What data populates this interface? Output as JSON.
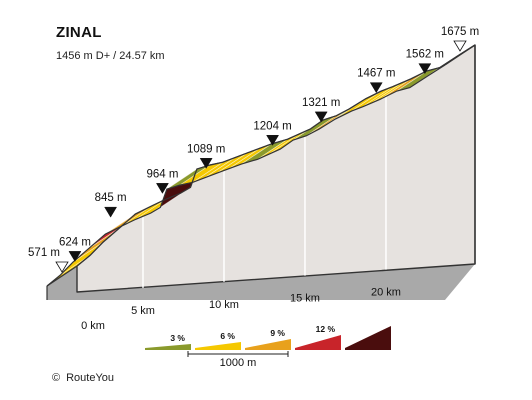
{
  "header": {
    "title": "ZINAL",
    "subtitle": "1456 m D+ / 24.57 km"
  },
  "footer": {
    "copyright_symbol": "©",
    "copyright_text": "RouteYou"
  },
  "colors": {
    "grade_3": "#8a9a2c",
    "grade_6": "#f5c800",
    "grade_9": "#e8a11c",
    "grade_12": "#c8242a",
    "grade_max": "#4a0d0d",
    "side_face": "#e6e2df",
    "base_face": "#a9a9a9",
    "edge": "#333333"
  },
  "chart_data": {
    "type": "area",
    "title": "ZINAL",
    "subtitle": "1456 m D+ / 24.57 km",
    "xlabel": "",
    "ylabel": "",
    "x_unit": "km",
    "y_unit": "m",
    "xlim": [
      0,
      24.57
    ],
    "ylim": [
      571,
      1675
    ],
    "x_ticks": [
      {
        "value": 0,
        "label": "0 km"
      },
      {
        "value": 5,
        "label": "5 km"
      },
      {
        "value": 10,
        "label": "10 km"
      },
      {
        "value": 15,
        "label": "15 km"
      },
      {
        "value": 20,
        "label": "20 km"
      }
    ],
    "profile": [
      {
        "km": 0.0,
        "elev": 571,
        "color": "grade_6"
      },
      {
        "km": 0.8,
        "elev": 624,
        "color": "grade_6"
      },
      {
        "km": 1.6,
        "elev": 690,
        "color": "grade_9"
      },
      {
        "km": 2.6,
        "elev": 760,
        "color": "grade_12"
      },
      {
        "km": 3.6,
        "elev": 830,
        "color": "grade_9"
      },
      {
        "km": 4.6,
        "elev": 870,
        "color": "grade_6"
      },
      {
        "km": 5.5,
        "elev": 905,
        "color": "grade_6"
      },
      {
        "km": 6.4,
        "elev": 935,
        "color": "grade_3"
      },
      {
        "km": 7.0,
        "elev": 964,
        "color": "grade_max"
      },
      {
        "km": 7.4,
        "elev": 1055,
        "color": "grade_3"
      },
      {
        "km": 8.2,
        "elev": 1075,
        "color": "grade_6"
      },
      {
        "km": 9.0,
        "elev": 1089,
        "color": "grade_6"
      },
      {
        "km": 10.5,
        "elev": 1135,
        "color": "grade_6"
      },
      {
        "km": 12.0,
        "elev": 1180,
        "color": "grade_3"
      },
      {
        "km": 13.0,
        "elev": 1204,
        "color": "grade_6"
      },
      {
        "km": 14.4,
        "elev": 1255,
        "color": "grade_9"
      },
      {
        "km": 15.2,
        "elev": 1300,
        "color": "grade_3"
      },
      {
        "km": 16.0,
        "elev": 1321,
        "color": "grade_9"
      },
      {
        "km": 16.8,
        "elev": 1355,
        "color": "grade_3"
      },
      {
        "km": 17.8,
        "elev": 1405,
        "color": "grade_6"
      },
      {
        "km": 18.8,
        "elev": 1445,
        "color": "grade_6"
      },
      {
        "km": 19.5,
        "elev": 1467,
        "color": "grade_6"
      },
      {
        "km": 20.6,
        "elev": 1505,
        "color": "grade_9"
      },
      {
        "km": 21.6,
        "elev": 1545,
        "color": "grade_3"
      },
      {
        "km": 22.4,
        "elev": 1562,
        "color": "grade_6"
      },
      {
        "km": 23.5,
        "elev": 1620,
        "color": "grade_6"
      },
      {
        "km": 24.57,
        "elev": 1675,
        "color": null
      }
    ],
    "elevation_labels": [
      {
        "km": 0.0,
        "elev": 571,
        "label": "571 m",
        "marker": "start"
      },
      {
        "km": 0.8,
        "elev": 624,
        "label": "624 m",
        "marker": "point"
      },
      {
        "km": 3.0,
        "elev": 845,
        "label": "845 m",
        "marker": "point"
      },
      {
        "km": 6.2,
        "elev": 964,
        "label": "964 m",
        "marker": "point"
      },
      {
        "km": 8.9,
        "elev": 1089,
        "label": "1089 m",
        "marker": "point"
      },
      {
        "km": 13.0,
        "elev": 1204,
        "label": "1204 m",
        "marker": "point"
      },
      {
        "km": 16.0,
        "elev": 1321,
        "label": "1321 m",
        "marker": "point"
      },
      {
        "km": 19.4,
        "elev": 1467,
        "label": "1467 m",
        "marker": "point"
      },
      {
        "km": 22.4,
        "elev": 1562,
        "label": "1562 m",
        "marker": "point"
      },
      {
        "km": 24.57,
        "elev": 1675,
        "label": "1675 m",
        "marker": "end"
      }
    ],
    "legend": {
      "placement": "bottom",
      "items": [
        {
          "label": "3 %",
          "color": "grade_3"
        },
        {
          "label": "6 %",
          "color": "grade_6"
        },
        {
          "label": "9 %",
          "color": "grade_9"
        },
        {
          "label": "12 %",
          "color": "grade_12"
        },
        {
          "label": "",
          "color": "grade_max"
        }
      ],
      "scale_label": "1000 m"
    }
  }
}
